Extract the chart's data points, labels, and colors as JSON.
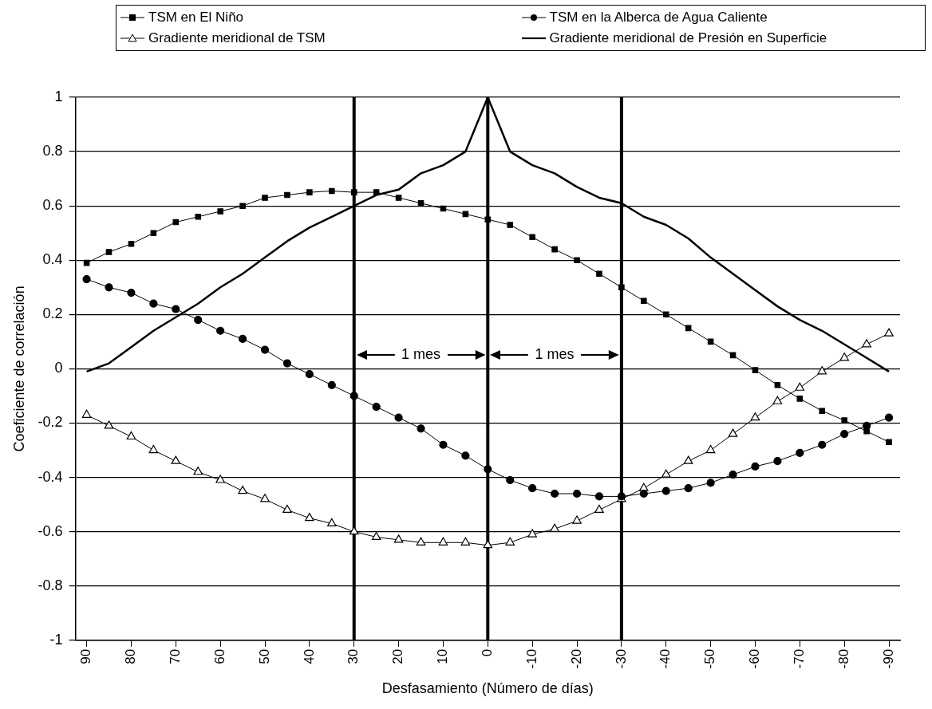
{
  "chart_data": {
    "type": "line",
    "xlabel": "Desfasamiento (Número de días)",
    "ylabel": "Coeficiente de correlación",
    "x": [
      90,
      85,
      80,
      75,
      70,
      65,
      60,
      55,
      50,
      45,
      40,
      35,
      30,
      25,
      20,
      15,
      10,
      5,
      0,
      -5,
      -10,
      -15,
      -20,
      -25,
      -30,
      -35,
      -40,
      -45,
      -50,
      -55,
      -60,
      -65,
      -70,
      -75,
      -80,
      -85,
      -90
    ],
    "series": [
      {
        "name": "TSM en El Niño",
        "color": "#000000",
        "marker": "square",
        "values": [
          0.39,
          0.43,
          0.46,
          0.5,
          0.54,
          0.56,
          0.58,
          0.6,
          0.63,
          0.64,
          0.65,
          0.655,
          0.65,
          0.65,
          0.63,
          0.61,
          0.59,
          0.57,
          0.55,
          0.53,
          0.485,
          0.44,
          0.4,
          0.35,
          0.3,
          0.25,
          0.2,
          0.15,
          0.1,
          0.05,
          -0.005,
          -0.06,
          -0.11,
          -0.155,
          -0.19,
          -0.23,
          -0.27
        ]
      },
      {
        "name": "TSM en la Alberca de Agua Caliente",
        "color": "#000000",
        "marker": "circle",
        "values": [
          0.33,
          0.3,
          0.28,
          0.24,
          0.22,
          0.18,
          0.14,
          0.11,
          0.07,
          0.02,
          -0.02,
          -0.06,
          -0.1,
          -0.14,
          -0.18,
          -0.22,
          -0.28,
          -0.32,
          -0.37,
          -0.41,
          -0.44,
          -0.46,
          -0.46,
          -0.47,
          -0.47,
          -0.46,
          -0.45,
          -0.44,
          -0.42,
          -0.39,
          -0.36,
          -0.34,
          -0.31,
          -0.28,
          -0.24,
          -0.21,
          -0.18
        ]
      },
      {
        "name": "Gradiente meridional de TSM",
        "color": "#000000",
        "marker": "triangle",
        "values": [
          -0.17,
          -0.21,
          -0.25,
          -0.3,
          -0.34,
          -0.38,
          -0.41,
          -0.45,
          -0.48,
          -0.52,
          -0.55,
          -0.57,
          -0.6,
          -0.62,
          -0.63,
          -0.64,
          -0.64,
          -0.64,
          -0.65,
          -0.64,
          -0.61,
          -0.59,
          -0.56,
          -0.52,
          -0.48,
          -0.44,
          -0.39,
          -0.34,
          -0.3,
          -0.24,
          -0.18,
          -0.12,
          -0.07,
          -0.01,
          0.04,
          0.09,
          0.13
        ]
      },
      {
        "name": "Gradiente meridional de Presión en Superficie",
        "color": "#000000",
        "marker": "none",
        "values": [
          -0.01,
          0.02,
          0.08,
          0.14,
          0.19,
          0.24,
          0.3,
          0.35,
          0.41,
          0.47,
          0.52,
          0.56,
          0.6,
          0.64,
          0.66,
          0.72,
          0.75,
          0.8,
          1,
          0.8,
          0.75,
          0.72,
          0.67,
          0.63,
          0.61,
          0.56,
          0.53,
          0.48,
          0.41,
          0.35,
          0.29,
          0.23,
          0.18,
          0.14,
          0.09,
          0.04,
          -0.01
        ]
      }
    ],
    "xlim": [
      92.5,
      -92.5
    ],
    "xticks": [
      90,
      80,
      70,
      60,
      50,
      40,
      30,
      20,
      10,
      0,
      -10,
      -20,
      -30,
      -40,
      -50,
      -60,
      -70,
      -80,
      -90
    ],
    "ylim": [
      -1,
      1
    ],
    "yticks": [
      -1,
      -0.8,
      -0.6,
      -0.4,
      -0.2,
      0,
      0.2,
      0.4,
      0.6,
      0.8,
      1
    ],
    "grid": "y",
    "legend": "top",
    "ref_lines": [
      {
        "axis": "x",
        "value": 30
      },
      {
        "axis": "x",
        "value": 0
      },
      {
        "axis": "x",
        "value": -30
      }
    ],
    "annotations": [
      "1 mes",
      "1 mes"
    ]
  }
}
